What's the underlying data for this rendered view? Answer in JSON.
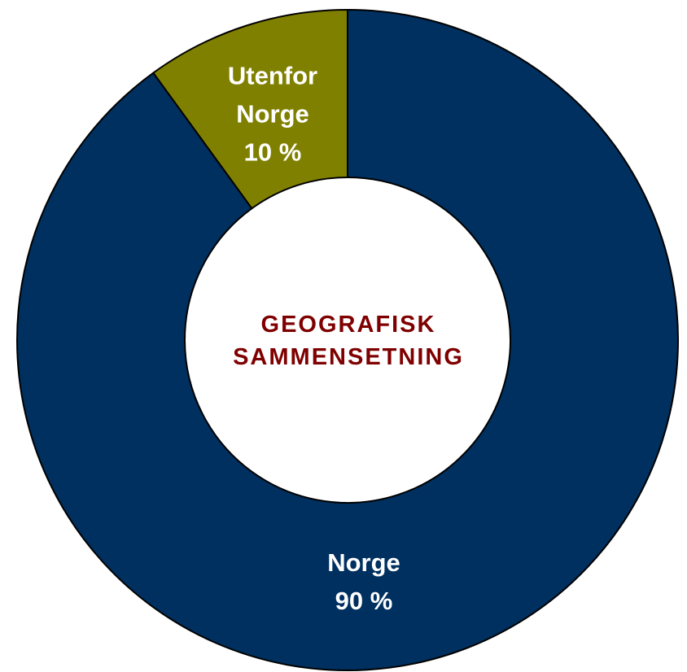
{
  "chart_data": {
    "type": "donut",
    "title": "GEOGRAFISK SAMMENSETNING",
    "categories": [
      "Norge",
      "Utenfor Norge"
    ],
    "values": [
      90,
      10
    ],
    "value_labels": [
      "90 %",
      "10 %"
    ],
    "colors": [
      "#00305f",
      "#808000"
    ]
  }
}
